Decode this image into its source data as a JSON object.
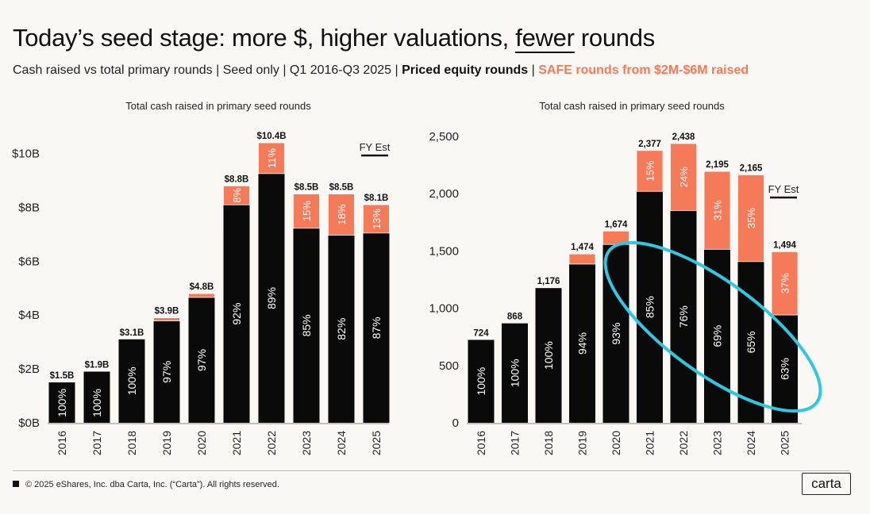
{
  "header": {
    "title_pre": "Today’s seed stage: more $, higher valuations, ",
    "title_under": "fewer",
    "title_post": " rounds",
    "subtitle_plain": "Cash raised vs total primary rounds | Seed only | Q1 2016-Q3 2025 | ",
    "subtitle_priced": "Priced equity rounds",
    "subtitle_sep": " | ",
    "subtitle_safe": "SAFE rounds from $2M-$6M raised"
  },
  "colors": {
    "priced": "#0a0a0a",
    "safe": "#f57a57",
    "highlight": "#2cc9e0"
  },
  "chart_data": [
    {
      "type": "bar",
      "stacked": true,
      "title": "Total cash raised in primary seed rounds",
      "ylabel": "",
      "xlabel": "",
      "categories": [
        "2016",
        "2017",
        "2018",
        "2019",
        "2020",
        "2021",
        "2022",
        "2023",
        "2024",
        "2025"
      ],
      "ylim": [
        0,
        10.4
      ],
      "yticks": [
        0,
        2,
        4,
        6,
        8,
        10
      ],
      "ytick_labels": [
        "$0B",
        "$2B",
        "$4B",
        "$6B",
        "$8B",
        "$10B"
      ],
      "totals": [
        1.5,
        1.9,
        3.1,
        3.9,
        4.8,
        8.8,
        10.4,
        8.5,
        8.5,
        8.1
      ],
      "total_labels": [
        "$1.5B",
        "$1.9B",
        "$3.1B",
        "$3.9B",
        "$4.8B",
        "$8.8B",
        "$10.4B",
        "$8.5B",
        "$8.5B",
        "$8.1B"
      ],
      "series": [
        {
          "name": "Priced equity rounds",
          "share_pct": [
            100,
            100,
            100,
            97,
            97,
            92,
            89,
            85,
            82,
            87
          ],
          "labels": [
            "100%",
            "100%",
            "100%",
            "97%",
            "97%",
            "92%",
            "89%",
            "85%",
            "82%",
            "87%"
          ]
        },
        {
          "name": "SAFE rounds from $2M-$6M raised",
          "share_pct": [
            0,
            0,
            0,
            3,
            3,
            8,
            11,
            15,
            18,
            13
          ],
          "labels": [
            "",
            "",
            "",
            "",
            "",
            "8%",
            "11%",
            "15%",
            "18%",
            "13%"
          ]
        }
      ],
      "annotation": "FY Est"
    },
    {
      "type": "bar",
      "stacked": true,
      "title": "Total cash raised in primary seed rounds",
      "ylabel": "",
      "xlabel": "",
      "categories": [
        "2016",
        "2017",
        "2018",
        "2019",
        "2020",
        "2021",
        "2022",
        "2023",
        "2024",
        "2025"
      ],
      "ylim": [
        0,
        2500
      ],
      "yticks": [
        0,
        500,
        1000,
        1500,
        2000,
        2500
      ],
      "ytick_labels": [
        "0",
        "500",
        "1,000",
        "1,500",
        "2,000",
        "2,500"
      ],
      "totals": [
        724,
        868,
        1176,
        1474,
        1674,
        2377,
        2438,
        2195,
        2165,
        1494
      ],
      "total_labels": [
        "724",
        "868",
        "1,176",
        "1,474",
        "1,674",
        "2,377",
        "2,438",
        "2,195",
        "2,165",
        "1,494"
      ],
      "series": [
        {
          "name": "Priced equity rounds",
          "share_pct": [
            100,
            100,
            100,
            94,
            93,
            85,
            76,
            69,
            65,
            63
          ],
          "labels": [
            "100%",
            "100%",
            "100%",
            "94%",
            "93%",
            "85%",
            "76%",
            "69%",
            "65%",
            "63%"
          ]
        },
        {
          "name": "SAFE rounds from $2M-$6M raised",
          "share_pct": [
            0,
            0,
            0,
            6,
            7,
            15,
            24,
            31,
            35,
            37
          ],
          "labels": [
            "",
            "",
            "",
            "",
            "",
            "15%",
            "24%",
            "31%",
            "35%",
            "37%"
          ]
        }
      ],
      "annotation": "FY Est",
      "highlight": "ellipse around 2021-2025 priced share"
    }
  ],
  "footer": {
    "copyright": "© 2025 eShares, Inc. dba Carta, Inc. (“Carta”). All rights reserved.",
    "logo": "carta"
  }
}
